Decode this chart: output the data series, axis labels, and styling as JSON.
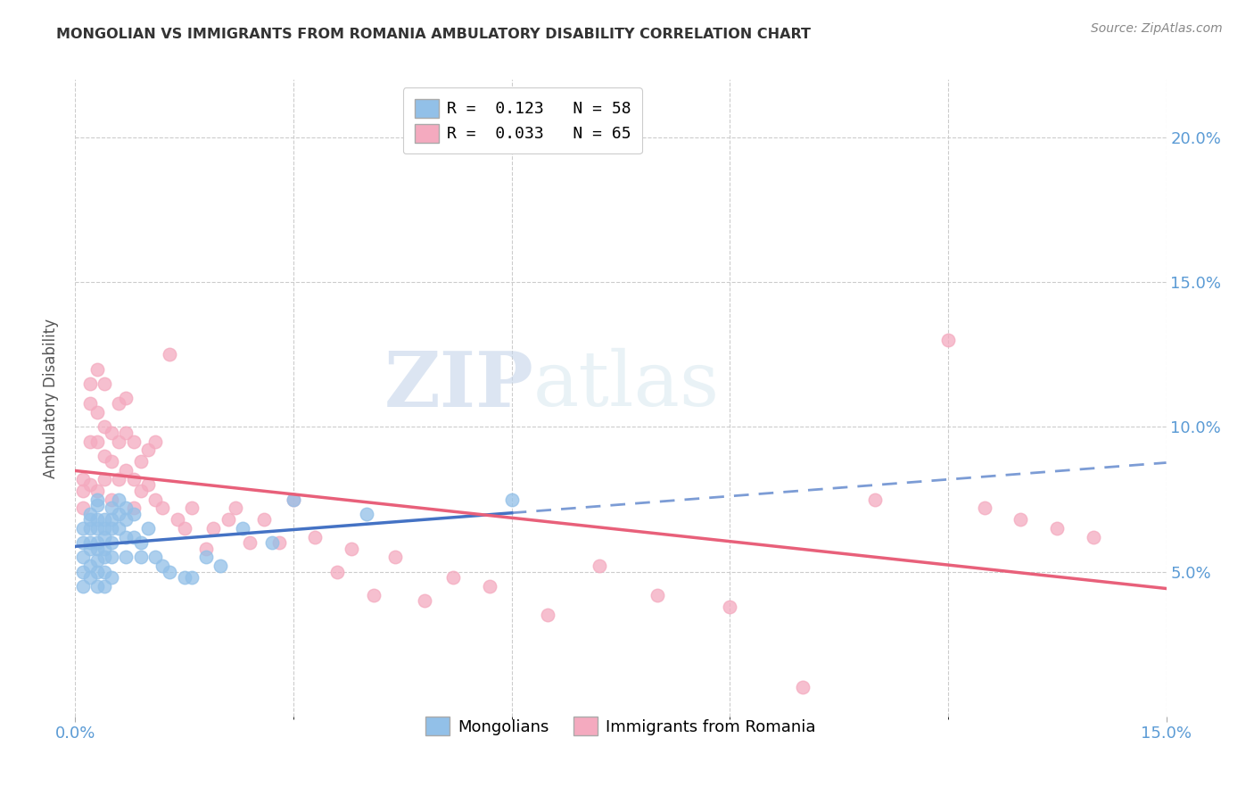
{
  "title": "MONGOLIAN VS IMMIGRANTS FROM ROMANIA AMBULATORY DISABILITY CORRELATION CHART",
  "source": "Source: ZipAtlas.com",
  "ylabel": "Ambulatory Disability",
  "xlim": [
    0.0,
    0.15
  ],
  "ylim": [
    0.0,
    0.22
  ],
  "yticks_right": [
    0.05,
    0.1,
    0.15,
    0.2
  ],
  "ytick_labels_right": [
    "5.0%",
    "10.0%",
    "15.0%",
    "20.0%"
  ],
  "legend_blue_r": "R =  0.123",
  "legend_blue_n": "N = 58",
  "legend_pink_r": "R =  0.033",
  "legend_pink_n": "N = 65",
  "blue_color": "#92C0E8",
  "pink_color": "#F4AABF",
  "blue_line_color": "#4472C4",
  "pink_line_color": "#E8607A",
  "watermark_zip": "ZIP",
  "watermark_atlas": "atlas",
  "background_color": "#FFFFFF",
  "mongolians_x": [
    0.001,
    0.001,
    0.001,
    0.001,
    0.001,
    0.002,
    0.002,
    0.002,
    0.002,
    0.002,
    0.002,
    0.002,
    0.003,
    0.003,
    0.003,
    0.003,
    0.003,
    0.003,
    0.003,
    0.003,
    0.003,
    0.004,
    0.004,
    0.004,
    0.004,
    0.004,
    0.004,
    0.004,
    0.005,
    0.005,
    0.005,
    0.005,
    0.005,
    0.005,
    0.006,
    0.006,
    0.006,
    0.007,
    0.007,
    0.007,
    0.007,
    0.008,
    0.008,
    0.009,
    0.009,
    0.01,
    0.011,
    0.012,
    0.013,
    0.015,
    0.016,
    0.018,
    0.02,
    0.023,
    0.027,
    0.03,
    0.04,
    0.06
  ],
  "mongolians_y": [
    0.065,
    0.06,
    0.055,
    0.05,
    0.045,
    0.07,
    0.068,
    0.065,
    0.06,
    0.058,
    0.052,
    0.048,
    0.075,
    0.073,
    0.068,
    0.065,
    0.06,
    0.058,
    0.054,
    0.05,
    0.045,
    0.068,
    0.065,
    0.062,
    0.058,
    0.055,
    0.05,
    0.045,
    0.072,
    0.068,
    0.065,
    0.06,
    0.055,
    0.048,
    0.075,
    0.07,
    0.065,
    0.072,
    0.068,
    0.062,
    0.055,
    0.07,
    0.062,
    0.06,
    0.055,
    0.065,
    0.055,
    0.052,
    0.05,
    0.048,
    0.048,
    0.055,
    0.052,
    0.065,
    0.06,
    0.075,
    0.07,
    0.075
  ],
  "romania_x": [
    0.001,
    0.001,
    0.001,
    0.002,
    0.002,
    0.002,
    0.002,
    0.003,
    0.003,
    0.003,
    0.003,
    0.004,
    0.004,
    0.004,
    0.004,
    0.005,
    0.005,
    0.005,
    0.006,
    0.006,
    0.006,
    0.007,
    0.007,
    0.007,
    0.008,
    0.008,
    0.008,
    0.009,
    0.009,
    0.01,
    0.01,
    0.011,
    0.011,
    0.012,
    0.013,
    0.014,
    0.015,
    0.016,
    0.018,
    0.019,
    0.021,
    0.022,
    0.024,
    0.026,
    0.028,
    0.03,
    0.033,
    0.036,
    0.038,
    0.041,
    0.044,
    0.048,
    0.052,
    0.057,
    0.065,
    0.072,
    0.08,
    0.09,
    0.1,
    0.11,
    0.12,
    0.125,
    0.13,
    0.135,
    0.14
  ],
  "romania_y": [
    0.082,
    0.078,
    0.072,
    0.115,
    0.108,
    0.095,
    0.08,
    0.12,
    0.105,
    0.095,
    0.078,
    0.115,
    0.1,
    0.09,
    0.082,
    0.098,
    0.088,
    0.075,
    0.108,
    0.095,
    0.082,
    0.11,
    0.098,
    0.085,
    0.095,
    0.082,
    0.072,
    0.088,
    0.078,
    0.092,
    0.08,
    0.095,
    0.075,
    0.072,
    0.125,
    0.068,
    0.065,
    0.072,
    0.058,
    0.065,
    0.068,
    0.072,
    0.06,
    0.068,
    0.06,
    0.075,
    0.062,
    0.05,
    0.058,
    0.042,
    0.055,
    0.04,
    0.048,
    0.045,
    0.035,
    0.052,
    0.042,
    0.038,
    0.01,
    0.075,
    0.13,
    0.072,
    0.068,
    0.065,
    0.062
  ]
}
